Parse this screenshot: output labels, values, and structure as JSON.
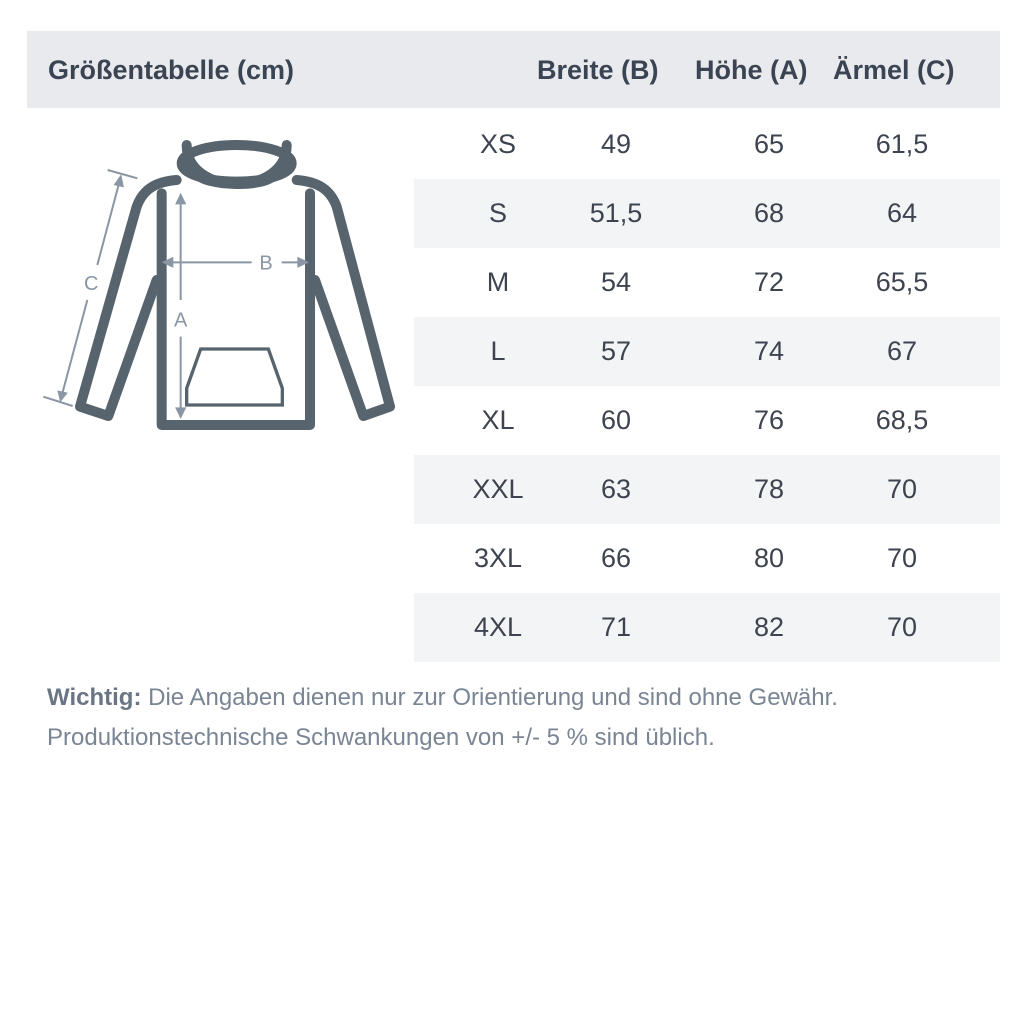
{
  "header": {
    "title": "Größentabelle (cm)",
    "columns": [
      "Breite (B)",
      "Höhe (A)",
      "Ärmel (C)"
    ]
  },
  "diagram": {
    "labels": {
      "a": "A",
      "b": "B",
      "c": "C"
    }
  },
  "rows": [
    {
      "size": "XS",
      "breite": "49",
      "hoehe": "65",
      "aermel": "61,5"
    },
    {
      "size": "S",
      "breite": "51,5",
      "hoehe": "68",
      "aermel": "64"
    },
    {
      "size": "M",
      "breite": "54",
      "hoehe": "72",
      "aermel": "65,5"
    },
    {
      "size": "L",
      "breite": "57",
      "hoehe": "74",
      "aermel": "67"
    },
    {
      "size": "XL",
      "breite": "60",
      "hoehe": "76",
      "aermel": "68,5"
    },
    {
      "size": "XXL",
      "breite": "63",
      "hoehe": "78",
      "aermel": "70"
    },
    {
      "size": "3XL",
      "breite": "66",
      "hoehe": "80",
      "aermel": "70"
    },
    {
      "size": "4XL",
      "breite": "71",
      "hoehe": "82",
      "aermel": "70"
    }
  ],
  "note": {
    "label": "Wichtig:",
    "line1": " Die Angaben dienen nur zur Orientierung und sind ohne Gewähr.",
    "line2": "Produktionstechnische Schwankungen von +/- 5 % sind üblich."
  },
  "colors": {
    "header_bg": "#e9eaee",
    "row_alt_bg": "#f3f4f6",
    "hoodie": "#57646d",
    "arrows": "#8a96a3"
  }
}
